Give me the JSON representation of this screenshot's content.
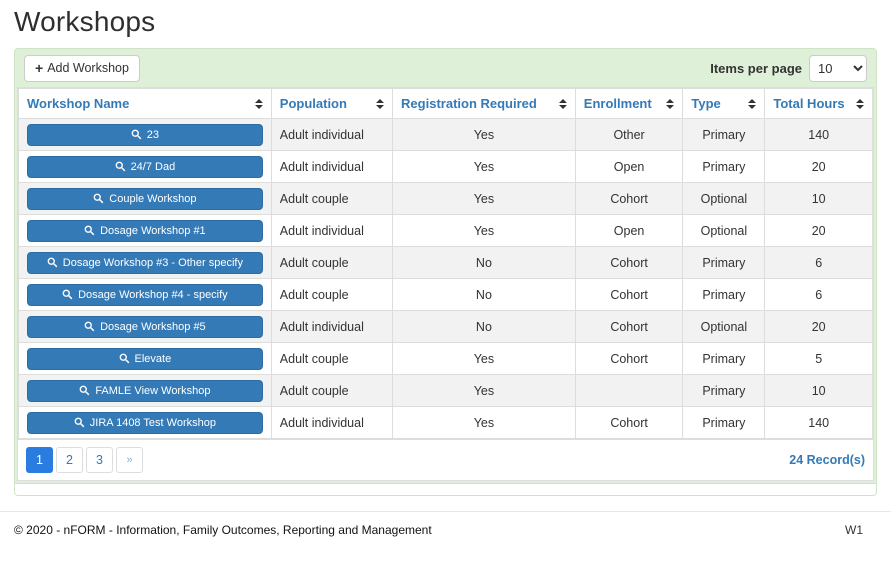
{
  "page": {
    "title": "Workshops"
  },
  "toolbar": {
    "add_button_label": "Add Workshop",
    "items_per_page_label": "Items per page",
    "items_per_page_value": "10"
  },
  "table": {
    "columns": [
      {
        "label": "Workshop Name"
      },
      {
        "label": "Population"
      },
      {
        "label": "Registration Required"
      },
      {
        "label": "Enrollment"
      },
      {
        "label": "Type"
      },
      {
        "label": "Total Hours"
      }
    ],
    "rows": [
      {
        "name": "23",
        "population": "Adult individual",
        "registration_required": "Yes",
        "enrollment": "Other",
        "type": "Primary",
        "total_hours": "140"
      },
      {
        "name": "24/7 Dad",
        "population": "Adult individual",
        "registration_required": "Yes",
        "enrollment": "Open",
        "type": "Primary",
        "total_hours": "20"
      },
      {
        "name": "Couple Workshop",
        "population": "Adult couple",
        "registration_required": "Yes",
        "enrollment": "Cohort",
        "type": "Optional",
        "total_hours": "10"
      },
      {
        "name": "Dosage Workshop #1",
        "population": "Adult individual",
        "registration_required": "Yes",
        "enrollment": "Open",
        "type": "Optional",
        "total_hours": "20"
      },
      {
        "name": "Dosage Workshop #3 - Other specify",
        "population": "Adult couple",
        "registration_required": "No",
        "enrollment": "Cohort",
        "type": "Primary",
        "total_hours": "6"
      },
      {
        "name": "Dosage Workshop #4 - specify",
        "population": "Adult couple",
        "registration_required": "No",
        "enrollment": "Cohort",
        "type": "Primary",
        "total_hours": "6"
      },
      {
        "name": "Dosage Workshop #5",
        "population": "Adult individual",
        "registration_required": "No",
        "enrollment": "Cohort",
        "type": "Optional",
        "total_hours": "20"
      },
      {
        "name": "Elevate",
        "population": "Adult couple",
        "registration_required": "Yes",
        "enrollment": "Cohort",
        "type": "Primary",
        "total_hours": "5"
      },
      {
        "name": "FAMLE View Workshop",
        "population": "Adult couple",
        "registration_required": "Yes",
        "enrollment": "",
        "type": "Primary",
        "total_hours": "10"
      },
      {
        "name": "JIRA 1408 Test Workshop",
        "population": "Adult individual",
        "registration_required": "Yes",
        "enrollment": "Cohort",
        "type": "Primary",
        "total_hours": "140"
      }
    ]
  },
  "pagination": {
    "pages": [
      "1",
      "2",
      "3",
      "»"
    ],
    "active_page": "1",
    "records_label": "24 Record(s)"
  },
  "footer": {
    "copyright": "© 2020 - nFORM - Information, Family Outcomes, Reporting and Management",
    "version": "W1"
  },
  "icons": {
    "add": "plus-icon",
    "workshop": "search-icon",
    "sort": "sort-arrows-icon",
    "select": "chevron-down-icon"
  },
  "colors": {
    "panel_bg": "#dff0d8",
    "panel_border": "#d0e3c6",
    "header_text": "#337ab7",
    "workshop_button": "#337ab7",
    "workshop_button_border": "#2e6da4",
    "active_page": "#2b7ce0",
    "row_alt": "#f2f2f2",
    "cell_border": "#dddddd"
  }
}
